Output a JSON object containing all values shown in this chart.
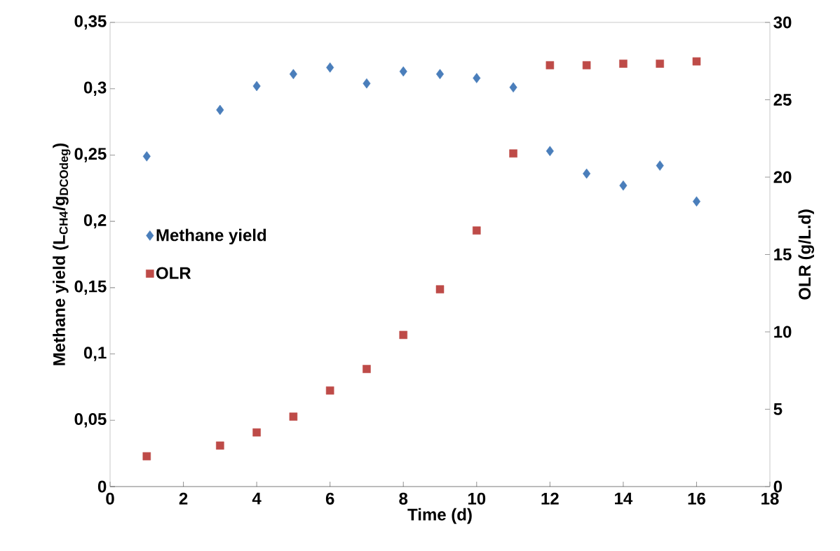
{
  "chart_data": {
    "type": "scatter",
    "xlabel": "Time (d)",
    "ylabel": "Methane yield (L$_{CH4}$/g$_{DCOdeg}$)",
    "y2label": "OLR (g/L.d)",
    "xlim": [
      0,
      18
    ],
    "xticks": [
      0,
      2,
      4,
      6,
      8,
      10,
      12,
      14,
      16,
      18
    ],
    "ylim": [
      0,
      0.35
    ],
    "yticks": [
      {
        "value": 0,
        "label": "0"
      },
      {
        "value": 0.05,
        "label": "0,05"
      },
      {
        "value": 0.1,
        "label": "0,1"
      },
      {
        "value": 0.15,
        "label": "0,15"
      },
      {
        "value": 0.2,
        "label": "0,2"
      },
      {
        "value": 0.25,
        "label": "0,25"
      },
      {
        "value": 0.3,
        "label": "0,3"
      },
      {
        "value": 0.35,
        "label": "0,35"
      }
    ],
    "y2lim": [
      0,
      30
    ],
    "y2ticks": [
      0,
      5,
      10,
      15,
      20,
      25,
      30
    ],
    "grid": false,
    "legend": "left",
    "series": [
      {
        "name": "Methane yield",
        "color": "#4a7ebb",
        "marker": "diamond",
        "x": [
          1,
          3,
          4,
          5,
          6,
          7,
          8,
          9,
          10,
          11,
          12,
          13,
          14,
          15,
          16
        ],
        "values": [
          0.249,
          0.284,
          0.302,
          0.311,
          0.316,
          0.304,
          0.313,
          0.311,
          0.308,
          0.301,
          0.253,
          0.236,
          0.227,
          0.242,
          0.215
        ]
      },
      {
        "name": "OLR",
        "color": "#be4b48",
        "marker": "square",
        "axis": "y2",
        "x": [
          1,
          3,
          4,
          5,
          6,
          7,
          8,
          9,
          10,
          11,
          12,
          13,
          14,
          15,
          16
        ],
        "values": [
          1.96,
          2.65,
          3.5,
          4.52,
          6.21,
          7.6,
          9.8,
          12.75,
          16.55,
          21.53,
          27.23,
          27.23,
          27.33,
          27.33,
          27.48
        ]
      }
    ]
  }
}
